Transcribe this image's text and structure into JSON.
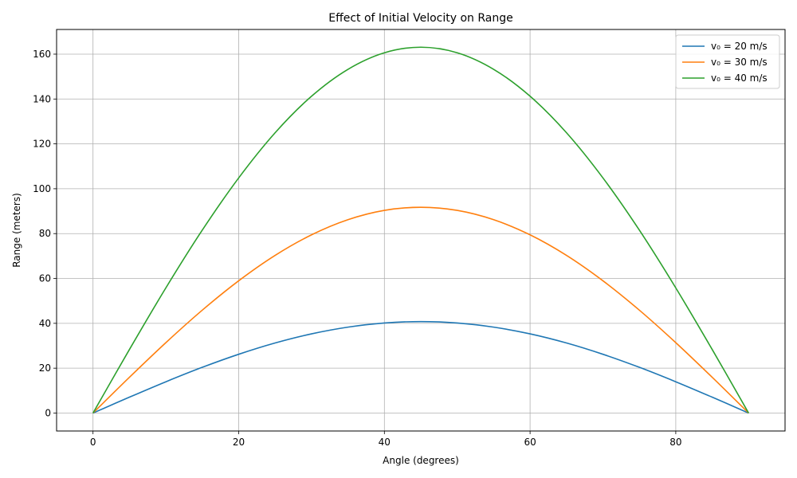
{
  "chart_data": {
    "type": "line",
    "title": "Effect of Initial Velocity on Range",
    "xlabel": "Angle (degrees)",
    "ylabel": "Range (meters)",
    "xlim": [
      -5,
      95
    ],
    "ylim": [
      -8,
      171
    ],
    "xticks": [
      0,
      20,
      40,
      60,
      80
    ],
    "yticks": [
      0,
      20,
      40,
      60,
      80,
      100,
      120,
      140,
      160
    ],
    "grid": true,
    "legend_position": "top-right",
    "x": [
      0,
      5,
      10,
      15,
      20,
      25,
      30,
      35,
      40,
      45,
      50,
      55,
      60,
      65,
      70,
      75,
      80,
      85,
      90
    ],
    "series": [
      {
        "name": "v₀ = 20 m/s",
        "color": "#1f77b4",
        "values": [
          0,
          7.08,
          13.95,
          20.39,
          26.21,
          31.24,
          35.31,
          38.31,
          40.16,
          40.77,
          40.16,
          38.31,
          35.31,
          31.24,
          26.21,
          20.39,
          13.95,
          7.08,
          0
        ]
      },
      {
        "name": "v₀ = 30 m/s",
        "color": "#ff7f0e",
        "values": [
          0,
          15.94,
          31.38,
          45.87,
          58.97,
          70.29,
          79.45,
          86.2,
          90.35,
          91.74,
          90.35,
          86.2,
          79.45,
          70.29,
          58.97,
          45.87,
          31.38,
          15.94,
          0
        ]
      },
      {
        "name": "v₀ = 40 m/s",
        "color": "#2ca02c",
        "values": [
          0,
          28.33,
          55.79,
          81.55,
          104.83,
          124.96,
          141.25,
          153.24,
          160.62,
          163.1,
          160.62,
          153.24,
          141.25,
          124.96,
          104.83,
          81.55,
          55.79,
          28.33,
          0
        ]
      }
    ]
  }
}
